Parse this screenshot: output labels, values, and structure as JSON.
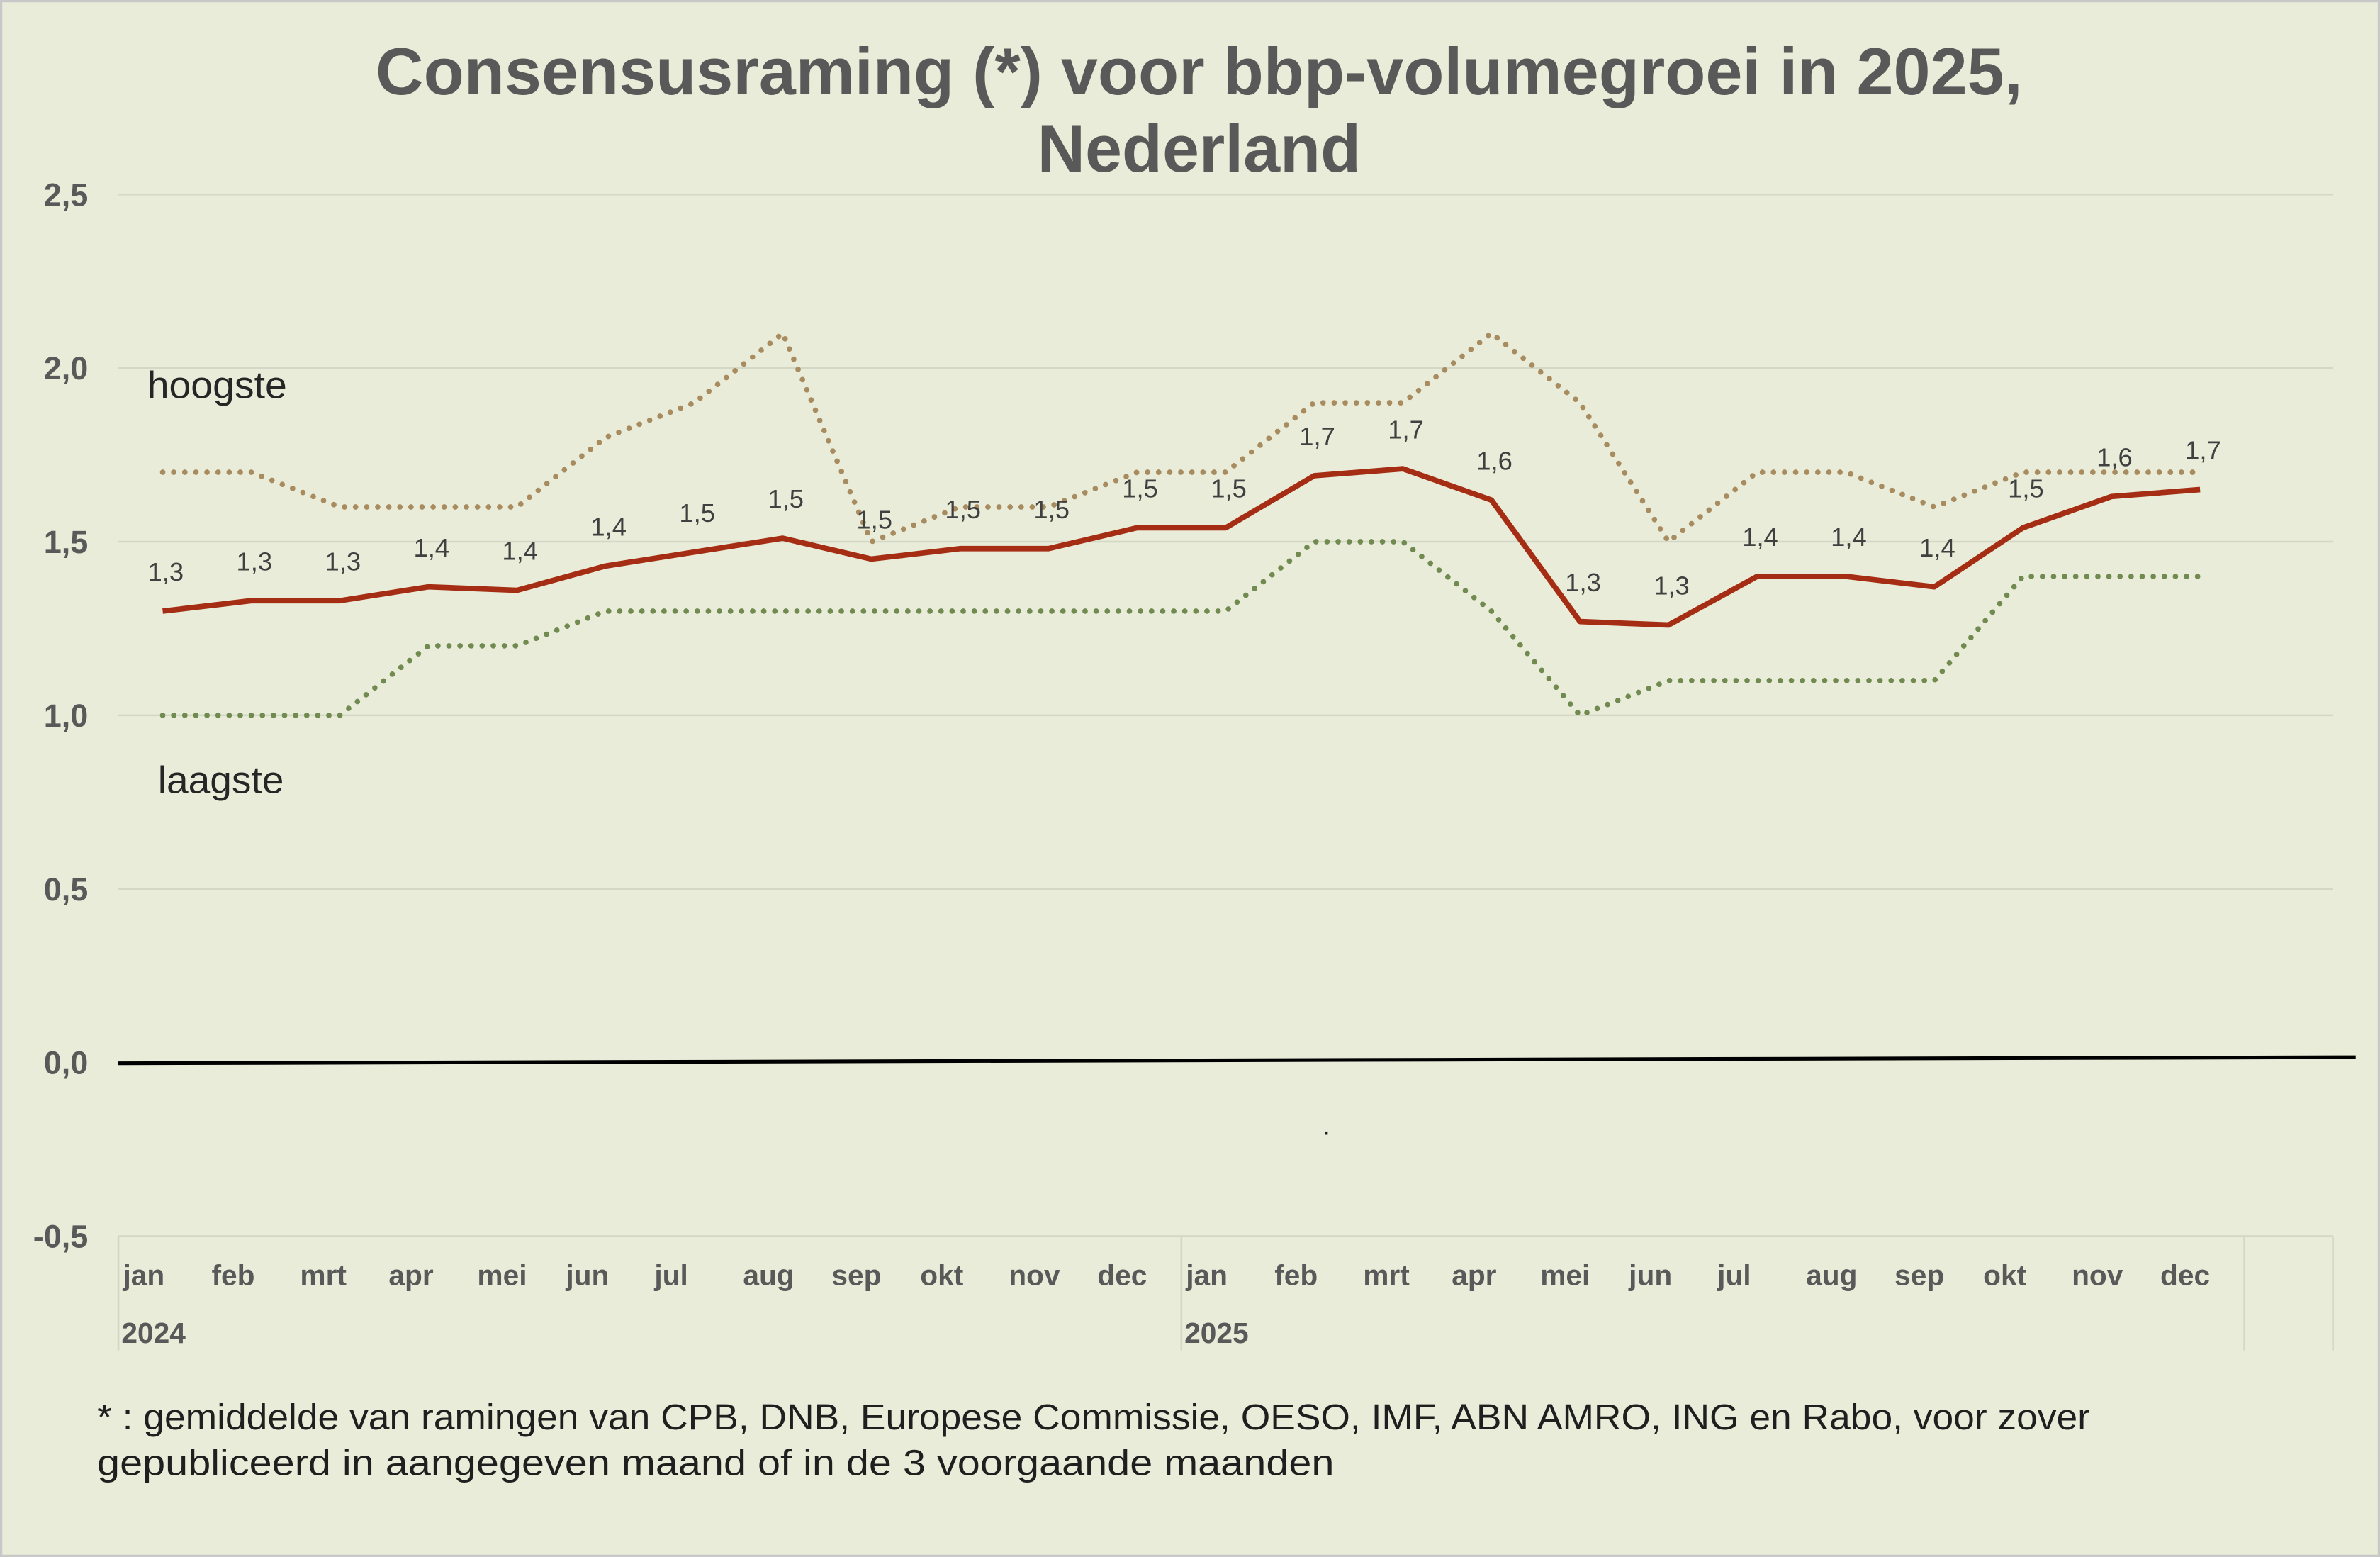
{
  "chart_data": {
    "type": "line",
    "title_lines": [
      "Consensusraming (*) voor bbp-volumegroei in 2025,",
      "Nederland"
    ],
    "categories": [
      "jan",
      "feb",
      "mrt",
      "apr",
      "mei",
      "jun",
      "jul",
      "aug",
      "sep",
      "okt",
      "nov",
      "dec",
      "jan",
      "feb",
      "mrt",
      "apr",
      "mei",
      "jun",
      "jul",
      "aug",
      "sep",
      "okt",
      "nov",
      "dec"
    ],
    "category_groups": [
      {
        "label": "2024",
        "count": 12
      },
      {
        "label": "2025",
        "count": 12
      }
    ],
    "ylim": [
      -0.5,
      2.5
    ],
    "yticks": [
      -0.5,
      0,
      0.5,
      1,
      1.5,
      2,
      2.5
    ],
    "ytick_labels": [
      "-0,5",
      "0,0",
      "0,5",
      "1,0",
      "1,5",
      "2,0",
      "2,5"
    ],
    "grid": true,
    "series": [
      {
        "values": [
          1.3,
          1.33,
          1.33,
          1.37,
          1.36,
          1.43,
          1.47,
          1.51,
          1.45,
          1.48,
          1.48,
          1.54,
          1.54,
          1.69,
          1.71,
          1.62,
          1.27,
          1.26,
          1.4,
          1.4,
          1.37,
          1.54,
          1.63,
          1.65
        ],
        "data_labels": [
          "1,3",
          "1,3",
          "1,3",
          "1,4",
          "1,4",
          "1,4",
          "1,5",
          "1,5",
          "1,5",
          "1,5",
          "1,5",
          "1,5",
          "1,5",
          "1,7",
          "1,7",
          "1,6",
          "1,3",
          "1,3",
          "1,4",
          "1,4",
          "1,4",
          "1,5",
          "1,6",
          "1,7"
        ],
        "color": "#A52D14",
        "style": "solid"
      },
      {
        "name": "hoogste",
        "values": [
          1.7,
          1.7,
          1.6,
          1.6,
          1.6,
          1.8,
          1.9,
          2.1,
          1.5,
          1.6,
          1.6,
          1.7,
          1.7,
          1.9,
          1.9,
          2.1,
          1.9,
          1.5,
          1.7,
          1.7,
          1.6,
          1.7,
          1.7,
          1.7
        ],
        "color": "#A88B5F",
        "style": "dotted"
      },
      {
        "name": "laagste",
        "values": [
          1.0,
          1.0,
          1.0,
          1.2,
          1.2,
          1.3,
          1.3,
          1.3,
          1.3,
          1.3,
          1.3,
          1.3,
          1.3,
          1.5,
          1.5,
          1.3,
          1.0,
          1.1,
          1.1,
          1.1,
          1.1,
          1.4,
          1.4,
          1.4
        ],
        "color": "#708A50",
        "style": "dotted"
      }
    ],
    "footnote_lines": [
      "* : gemiddelde van ramingen van CPB, DNB, Europese Commissie, OESO, IMF, ABN AMRO, ING en Rabo, voor zover",
      "gepubliceerd in aangegeven maand of in de 3 voorgaande maanden"
    ],
    "annotations": [
      "."
    ]
  },
  "colors": {
    "background": "#E8ECD8",
    "border": "#C8C8C8",
    "gridline": "#D3D7C5",
    "zero_line": "#000000",
    "axis_text": "#595959"
  }
}
